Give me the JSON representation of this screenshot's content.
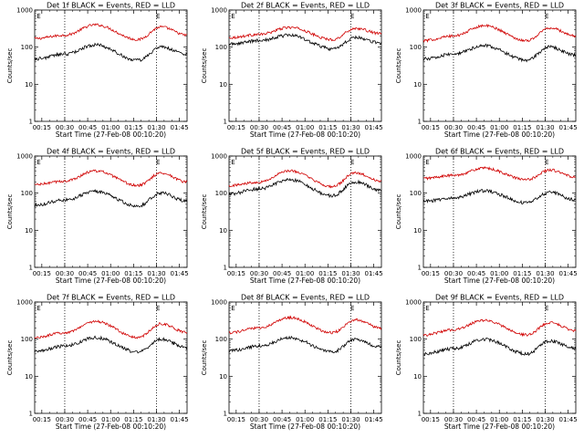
{
  "chart_data": {
    "type": "line",
    "layout": "3x3 grid",
    "yscale": "log",
    "ylim": [
      1,
      1000
    ],
    "ylabel": "Counts/sec",
    "yticks": [
      "1",
      "10",
      "100",
      "1000"
    ],
    "xlabel": "Start Time (27-Feb-08 00:10:20)",
    "xticks": [
      "00:15",
      "00:30",
      "00:45",
      "01:00",
      "01:15",
      "01:30",
      "01:45"
    ],
    "xtick_minutes": [
      15,
      30,
      45,
      60,
      75,
      90,
      105
    ],
    "xlim_minutes": [
      10.33,
      110
    ],
    "vlines_minutes": [
      30,
      90
    ],
    "marker_label": "E",
    "marker_minutes": [
      13,
      91
    ],
    "series_colors": {
      "events": "#000000",
      "lld": "#d00000"
    },
    "panels": [
      {
        "title": "Det 1f BLACK = Events, RED = LLD",
        "events": [
          48,
          65,
          115,
          44,
          100,
          65
        ],
        "lld": [
          170,
          210,
          400,
          160,
          350,
          210
        ]
      },
      {
        "title": "Det 2f BLACK = Events, RED = LLD",
        "events": [
          120,
          150,
          210,
          90,
          180,
          130
        ],
        "lld": [
          180,
          220,
          340,
          160,
          320,
          230
        ]
      },
      {
        "title": "Det 3f BLACK = Events, RED = LLD",
        "events": [
          48,
          65,
          110,
          45,
          100,
          60
        ],
        "lld": [
          150,
          200,
          380,
          150,
          330,
          200
        ]
      },
      {
        "title": "Det 4f BLACK = Events, RED = LLD",
        "events": [
          48,
          65,
          110,
          45,
          100,
          60
        ],
        "lld": [
          170,
          210,
          400,
          160,
          350,
          200
        ]
      },
      {
        "title": "Det 5f BLACK = Events, RED = LLD",
        "events": [
          95,
          130,
          230,
          85,
          200,
          120
        ],
        "lld": [
          160,
          200,
          400,
          150,
          350,
          210
        ]
      },
      {
        "title": "Det 6f BLACK = Events, RED = LLD",
        "events": [
          60,
          75,
          115,
          55,
          105,
          65
        ],
        "lld": [
          250,
          300,
          470,
          230,
          420,
          270
        ]
      },
      {
        "title": "Det 7f BLACK = Events, RED = LLD",
        "events": [
          48,
          65,
          110,
          45,
          100,
          60
        ],
        "lld": [
          110,
          150,
          300,
          110,
          260,
          150
        ]
      },
      {
        "title": "Det 8f BLACK = Events, RED = LLD",
        "events": [
          48,
          65,
          110,
          45,
          100,
          60
        ],
        "lld": [
          150,
          200,
          380,
          150,
          330,
          200
        ]
      },
      {
        "title": "Det 9f BLACK = Events, RED = LLD",
        "events": [
          40,
          55,
          100,
          40,
          90,
          55
        ],
        "lld": [
          130,
          180,
          320,
          130,
          280,
          170
        ]
      }
    ]
  }
}
